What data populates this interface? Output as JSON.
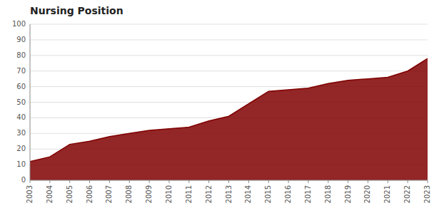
{
  "chart_data": {
    "type": "area",
    "title": "Nursing Position",
    "x": [
      2003,
      2004,
      2005,
      2006,
      2007,
      2008,
      2009,
      2010,
      2011,
      2012,
      2013,
      2014,
      2015,
      2016,
      2017,
      2018,
      2019,
      2020,
      2021,
      2022,
      2023
    ],
    "values": [
      12,
      15,
      23,
      25,
      28,
      30,
      32,
      33,
      34,
      38,
      41,
      49,
      57,
      58,
      59,
      62,
      64,
      65,
      66,
      70,
      78
    ],
    "color": "#800000",
    "xlim": [
      2003,
      2023
    ],
    "xticks": [
      2003,
      2004,
      2005,
      2006,
      2007,
      2008,
      2009,
      2010,
      2011,
      2012,
      2013,
      2014,
      2015,
      2016,
      2017,
      2018,
      2019,
      2020,
      2021,
      2022,
      2023
    ],
    "ylim": [
      0,
      100
    ],
    "yticks": [
      0,
      10,
      20,
      30,
      40,
      50,
      60,
      70,
      80,
      90,
      100
    ],
    "grid": true
  }
}
